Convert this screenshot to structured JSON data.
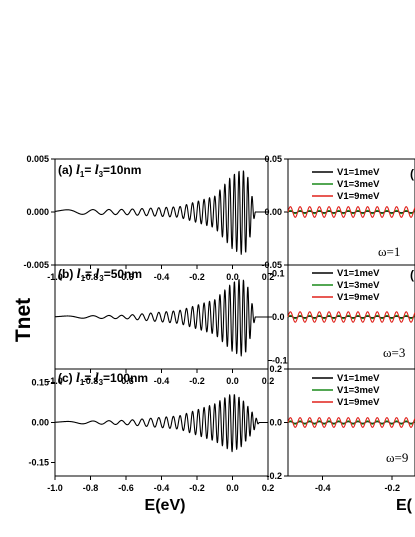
{
  "colors": {
    "black": "#000000",
    "green": "#1a8a1a",
    "red": "#e0221c"
  },
  "ylabel": "Tnet",
  "xlabel_left": "E(eV)",
  "xlabel_right": "E(",
  "left_panels": [
    {
      "prefix": "(a)",
      "l1": "l",
      "sub1": "1",
      "eq": "= ",
      "l3": "l",
      "sub3": "3",
      "rest": "=10nm"
    },
    {
      "prefix": "(b)",
      "l1": "l",
      "sub1": "1",
      "eq": "= ",
      "l3": "l",
      "sub3": "3",
      "rest": "=50nm"
    },
    {
      "prefix": "(c)",
      "l1": "l",
      "sub1": "1",
      "eq": "= ",
      "l3": "l",
      "sub3": "3",
      "rest": "=100nm"
    }
  ],
  "right_legends": [
    [
      "V1=1meV",
      "V1=3meV",
      "V1=9meV"
    ],
    [
      "V1=1meV",
      "V1=3meV",
      "V1=9meV"
    ],
    [
      "V1=1meV",
      "V1=3meV",
      "V1=9meV"
    ]
  ],
  "right_omega": [
    "ω=1",
    "ω=3",
    "ω=9"
  ],
  "right_panel_marks": [
    "(",
    "(",
    ""
  ],
  "chart_data": [
    {
      "type": "line",
      "panel": "(a)",
      "xlim": [
        -1.0,
        0.2
      ],
      "ylim": [
        -0.005,
        0.005
      ],
      "xticks": [
        "-1.0",
        "-0.8",
        "-0.6",
        "-0.4",
        "-0.2",
        "0.0",
        "0.2"
      ],
      "yticks": [
        "0.005",
        "0.000",
        "-0.005"
      ],
      "series": [
        {
          "color": "#000000",
          "x": [
            -1.0,
            -0.6,
            -0.3,
            -0.1,
            0.0,
            0.05,
            0.08
          ],
          "y_envelope": [
            0.0002,
            0.00025,
            0.0005,
            0.0015,
            0.0035,
            0.004,
            0.0038
          ]
        }
      ]
    },
    {
      "type": "line",
      "panel": "(b)",
      "xlim": [
        -1.0,
        0.2
      ],
      "ylim": [
        -0.12,
        0.12
      ],
      "xticks": [
        "-1.0",
        "-0.8",
        "-0.6",
        "-0.4",
        "-0.2",
        "0.0",
        "0.2"
      ],
      "yticks": [
        "0.1",
        "0.0",
        "-0.1"
      ],
      "series": [
        {
          "color": "#000000",
          "x": [
            -1.0,
            -0.6,
            -0.3,
            -0.1,
            0.0,
            0.05,
            0.08
          ],
          "y_envelope": [
            0.002,
            0.004,
            0.015,
            0.04,
            0.08,
            0.09,
            0.08
          ]
        }
      ]
    },
    {
      "type": "line",
      "panel": "(c)",
      "xlim": [
        -1.0,
        0.2
      ],
      "ylim": [
        -0.2,
        0.2
      ],
      "xticks": [
        "-1.0",
        "-0.8",
        "-0.6",
        "-0.4",
        "-0.2",
        "0.0",
        "0.2"
      ],
      "yticks": [
        "0.15",
        "0.00",
        "-0.15"
      ],
      "series": [
        {
          "color": "#000000",
          "x": [
            -1.0,
            -0.6,
            -0.3,
            -0.1,
            0.0,
            0.05,
            0.1
          ],
          "y_envelope": [
            0.003,
            0.008,
            0.025,
            0.07,
            0.11,
            0.09,
            0.05
          ]
        }
      ]
    },
    {
      "type": "line",
      "panel": "right-top",
      "xlim": [
        -0.5,
        -0.12
      ],
      "ylim": [
        -0.05,
        0.05
      ],
      "xticks": [],
      "yticks": [
        "0.05",
        "0.00",
        "-0.05"
      ],
      "series": [
        {
          "name": "V1=1meV",
          "color": "#000000",
          "amplitude": 0.0007
        },
        {
          "name": "V1=3meV",
          "color": "#1a8a1a",
          "amplitude": 0.0015
        },
        {
          "name": "V1=9meV",
          "color": "#e0221c",
          "amplitude": 0.005
        }
      ]
    },
    {
      "type": "line",
      "panel": "right-middle",
      "xlim": [
        -0.5,
        -0.12
      ],
      "ylim": [
        -0.05,
        0.05
      ],
      "xticks": [],
      "yticks": [],
      "series": [
        {
          "name": "V1=1meV",
          "color": "#000000",
          "amplitude": 0.0007
        },
        {
          "name": "V1=3meV",
          "color": "#1a8a1a",
          "amplitude": 0.0015
        },
        {
          "name": "V1=9meV",
          "color": "#e0221c",
          "amplitude": 0.005
        }
      ]
    },
    {
      "type": "line",
      "panel": "right-bottom",
      "xlim": [
        -0.5,
        -0.12
      ],
      "ylim": [
        -0.2,
        0.2
      ],
      "xticks": [
        "-0.4",
        "-0.2"
      ],
      "yticks": [
        "0.2",
        "0.0",
        "-0.2"
      ],
      "series": [
        {
          "name": "V1=1meV",
          "color": "#000000",
          "amplitude": 0.003
        },
        {
          "name": "V1=3meV",
          "color": "#1a8a1a",
          "amplitude": 0.006
        },
        {
          "name": "V1=9meV",
          "color": "#e0221c",
          "amplitude": 0.018
        }
      ]
    }
  ]
}
